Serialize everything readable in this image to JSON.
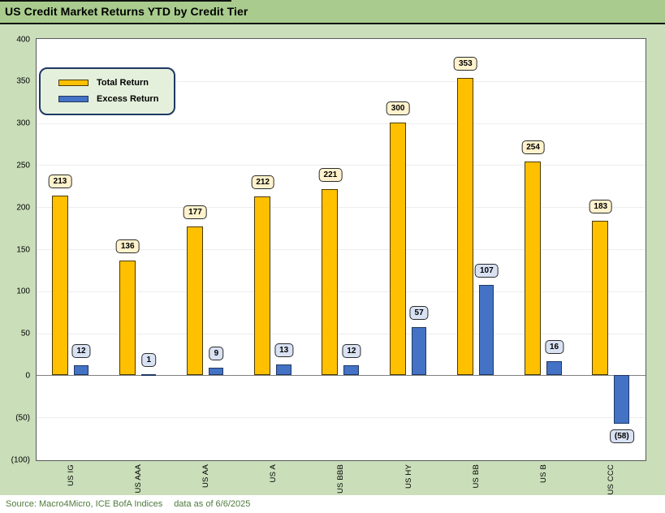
{
  "title": "US Credit Market Returns YTD by Credit Tier",
  "footer": {
    "source": "Source: Macro4Micro, ICE BofA Indices",
    "as_of": "data as of 6/6/2025"
  },
  "colors": {
    "title_band_bg": "#a9cc8e",
    "chart_bg": "#c9deb9",
    "plot_bg": "#ffffff",
    "total_return_fill": "#ffc000",
    "excess_return_fill": "#4472c4",
    "total_label_bg": "#fff2cc",
    "excess_label_bg": "#d9e2f3",
    "legend_bg": "#e5f0dc",
    "legend_border": "#1f3864",
    "footer_text": "#4e7a3c"
  },
  "chart_data": {
    "type": "bar",
    "title": "US Credit Market Returns YTD by Credit Tier",
    "categories": [
      "US IG",
      "US AAA",
      "US AA",
      "US A",
      "US BBB",
      "US HY",
      "US BB",
      "US B",
      "US CCC"
    ],
    "series": [
      {
        "name": "Total Return",
        "color": "#ffc000",
        "values": [
          213,
          136,
          177,
          212,
          221,
          300,
          353,
          254,
          183
        ],
        "labels": [
          "213",
          "136",
          "177",
          "212",
          "221",
          "300",
          "353",
          "254",
          "183"
        ]
      },
      {
        "name": "Excess Return",
        "color": "#4472c4",
        "values": [
          12,
          1,
          9,
          13,
          12,
          57,
          107,
          16,
          -58
        ],
        "labels": [
          "12",
          "1",
          "9",
          "13",
          "12",
          "57",
          "107",
          "16",
          "(58)"
        ]
      }
    ],
    "ylim": [
      -100,
      400
    ],
    "ytick_step": 50,
    "ytick_labels": [
      "400",
      "350",
      "300",
      "250",
      "200",
      "150",
      "100",
      "50",
      "0",
      "(50)",
      "(100)"
    ],
    "grid": true,
    "legend_position": "top-left",
    "xlabel": "",
    "ylabel": ""
  }
}
